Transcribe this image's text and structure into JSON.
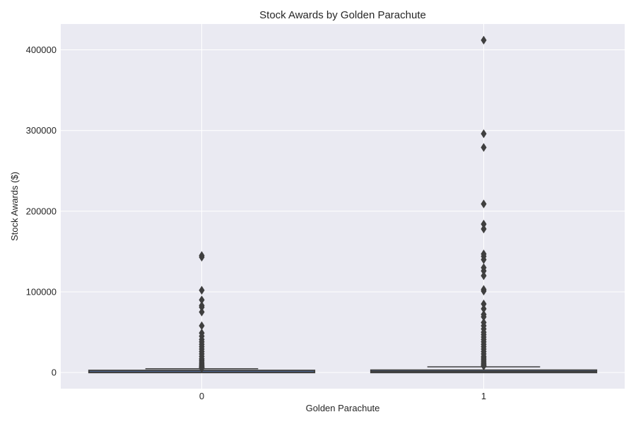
{
  "chart_data": {
    "type": "box",
    "title": "Stock Awards by Golden Parachute",
    "xlabel": "Golden Parachute",
    "ylabel": "Stock Awards ($)",
    "categories": [
      "0",
      "1"
    ],
    "ylim": [
      -20000,
      432000
    ],
    "yticks": [
      0,
      100000,
      200000,
      300000,
      400000
    ],
    "yticklabels": [
      "0",
      "100000",
      "200000",
      "300000",
      "400000"
    ],
    "grid": true,
    "colors": {
      "plot_bg": "#eaeaf2",
      "grid": "#ffffff",
      "box_edge": "#3f3f3f",
      "box_fill": "#4c72b0",
      "flier": "#3f3f3f"
    },
    "boxes": [
      {
        "category": "0",
        "q1": 0,
        "median": 500,
        "q3": 2000,
        "whisker_low": 0,
        "whisker_high": 4700,
        "fliers": [
          145000,
          143000,
          102000,
          90000,
          83000,
          81000,
          75000,
          58000,
          49000,
          45000,
          41000,
          38000,
          35000,
          32000,
          29000,
          26000,
          23000,
          20000,
          17000,
          15000,
          13000,
          11000,
          9500,
          8000,
          7000,
          6000,
          5300
        ]
      },
      {
        "category": "1",
        "q1": 0,
        "median": 1200,
        "q3": 3000,
        "whisker_low": 0,
        "whisker_high": 7000,
        "fliers": [
          412000,
          296000,
          279000,
          209000,
          184000,
          178000,
          147000,
          144000,
          140000,
          130000,
          126000,
          120000,
          103000,
          101000,
          85000,
          79000,
          72000,
          69000,
          62000,
          58000,
          54000,
          50000,
          47000,
          44000,
          41000,
          38000,
          35000,
          32000,
          29000,
          26000,
          23000,
          20000,
          18000,
          16000,
          14000,
          12000,
          10500,
          9000,
          8000
        ]
      }
    ]
  }
}
